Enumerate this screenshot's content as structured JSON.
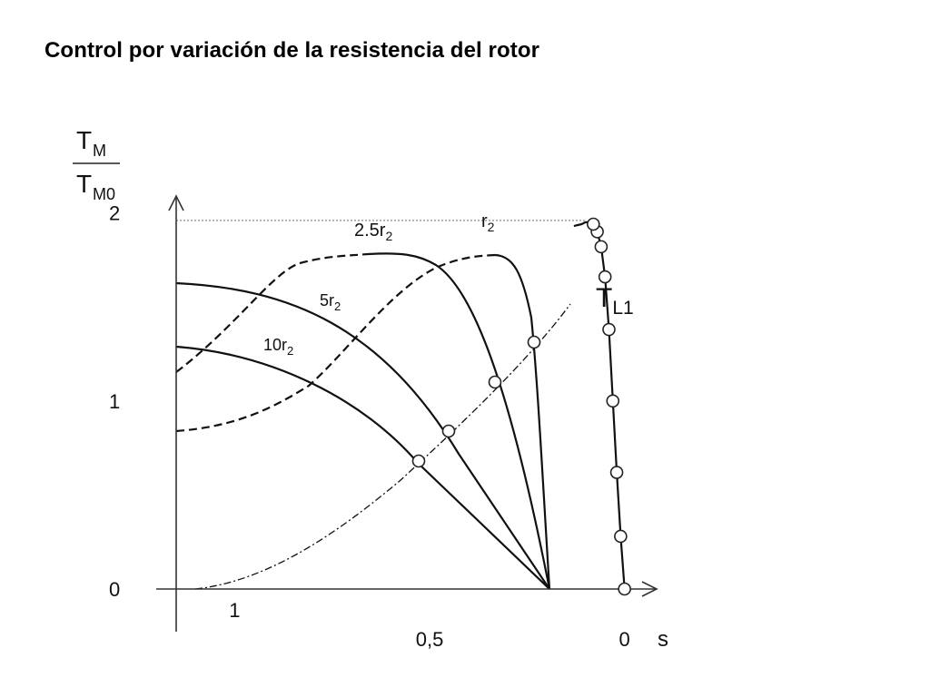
{
  "title": "Control por variación de la resistencia del rotor",
  "chart_data": {
    "type": "line",
    "title": "Control por variación de la resistencia del rotor",
    "ylabel": {
      "numerator": "T",
      "numerator_sub": "M",
      "denominator": "T",
      "denominator_sub": "M0"
    },
    "xlabel": "s",
    "x_direction": "decreasing",
    "xlim": [
      1.15,
      -0.08
    ],
    "ylim": [
      0,
      2.08
    ],
    "y_ticks": [
      {
        "value": 0,
        "label": "0"
      },
      {
        "value": 1,
        "label": "1"
      },
      {
        "value": 2,
        "label": "2"
      }
    ],
    "x_ticks": [
      {
        "value": 1,
        "label": "1",
        "row": "upper"
      },
      {
        "value": 0.5,
        "label": "0,5",
        "row": "lower"
      },
      {
        "value": 0,
        "label": "0",
        "row": "lower"
      }
    ],
    "reference_line": {
      "y": 1.96,
      "style": "dotted"
    },
    "series": [
      {
        "name": "r",
        "name_sub": "2",
        "style": "solid",
        "x": [
          0.0,
          0.01,
          0.02,
          0.03,
          0.04,
          0.05,
          0.06,
          0.07,
          0.08,
          0.09,
          0.1,
          0.11,
          0.12,
          0.13
        ],
        "y": [
          0.0,
          0.28,
          0.62,
          1.0,
          1.38,
          1.66,
          1.82,
          1.9,
          1.94,
          1.95,
          1.95,
          1.94,
          1.935,
          1.93
        ],
        "points": [
          {
            "x": 0.0,
            "y": 0.0
          },
          {
            "x": 0.01,
            "y": 0.28
          },
          {
            "x": 0.02,
            "y": 0.62
          },
          {
            "x": 0.03,
            "y": 1.0
          },
          {
            "x": 0.04,
            "y": 1.38
          },
          {
            "x": 0.05,
            "y": 1.66
          },
          {
            "x": 0.06,
            "y": 1.82
          },
          {
            "x": 0.07,
            "y": 1.9
          },
          {
            "x": 0.08,
            "y": 1.94
          }
        ]
      }
    ]
  }
}
